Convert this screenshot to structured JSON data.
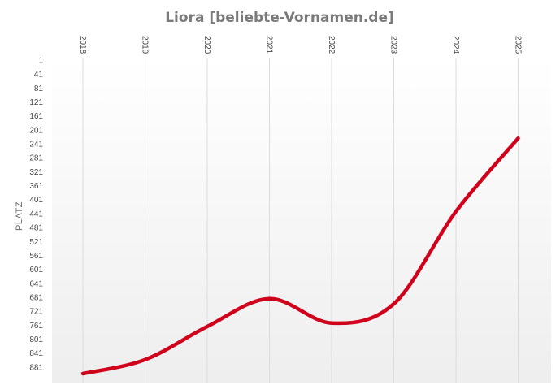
{
  "chart_data": {
    "type": "line",
    "title": "Liora [beliebte-Vornamen.de]",
    "xlabel": "",
    "ylabel": "PLATZ",
    "categories": [
      "2018",
      "2019",
      "2020",
      "2021",
      "2022",
      "2023",
      "2024",
      "2025"
    ],
    "y_ticks": [
      "1",
      "41",
      "81",
      "121",
      "161",
      "201",
      "241",
      "281",
      "321",
      "361",
      "401",
      "441",
      "481",
      "521",
      "561",
      "601",
      "641",
      "681",
      "721",
      "761",
      "801",
      "841",
      "881"
    ],
    "y_axis_reversed": true,
    "ylim": [
      1,
      900
    ],
    "grid": "vertical",
    "series": [
      {
        "values": [
          900,
          860,
          765,
          685,
          755,
          700,
          435,
          225
        ]
      }
    ],
    "colors": {
      "line": "#d0021b",
      "grid": "#dcdcdc",
      "title": "#7a7a7a",
      "background_top": "#ffffff",
      "background_bottom": "#eeeeee"
    }
  }
}
